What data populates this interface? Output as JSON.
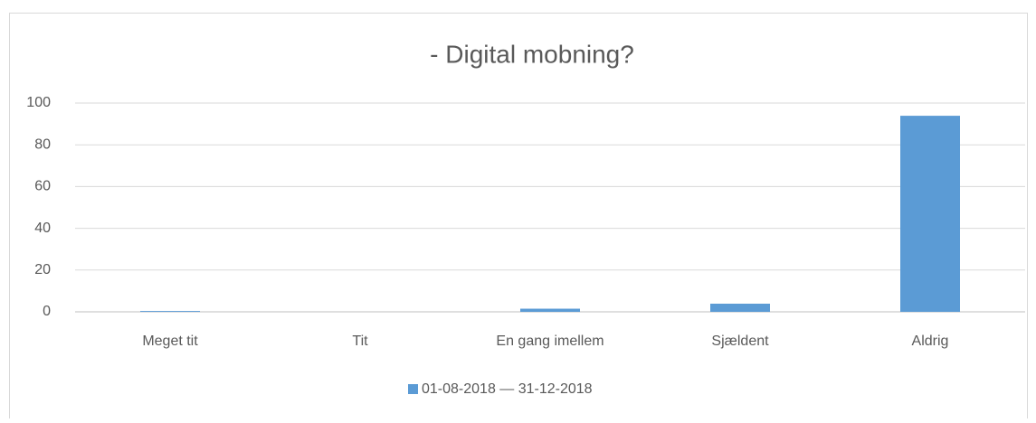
{
  "chart_data": {
    "type": "bar",
    "title": "- Digital mobning?",
    "categories": [
      "Meget tit",
      "Tit",
      "En gang imellem",
      "Sjældent",
      "Aldrig"
    ],
    "series": [
      {
        "name": "01-08-2018 — 31-12-2018",
        "color": "#5b9bd5",
        "values": [
          0.4,
          0,
          1.5,
          3.9,
          93.9
        ]
      }
    ],
    "ylim": [
      0,
      100
    ],
    "yticks": [
      0,
      20,
      40,
      60,
      80,
      100
    ],
    "grid": true,
    "legend": "bottom"
  }
}
